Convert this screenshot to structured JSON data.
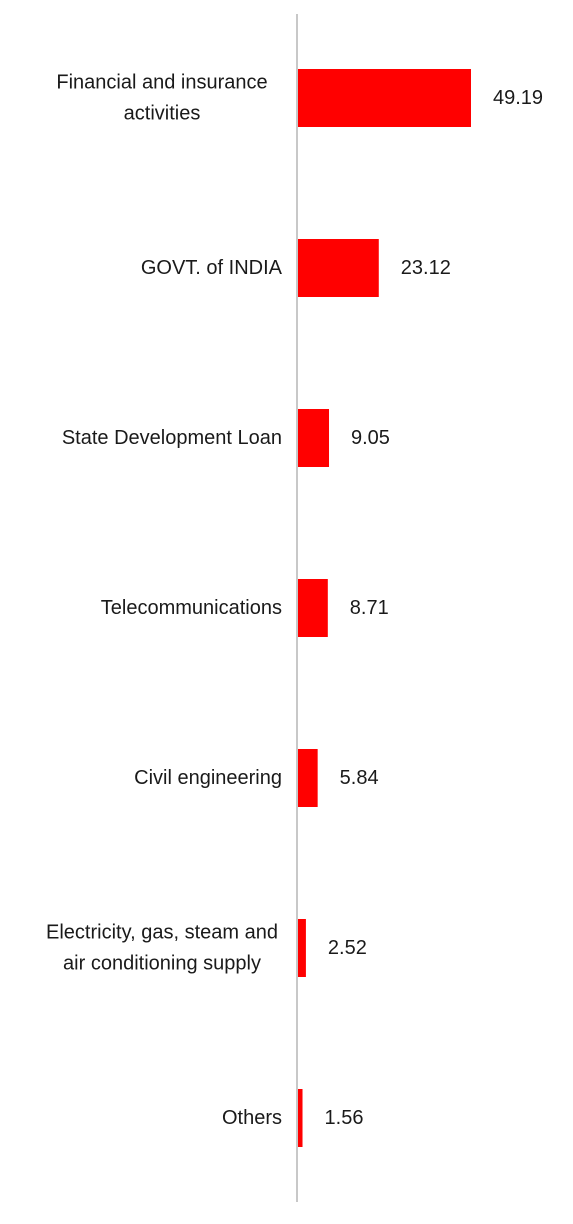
{
  "chart_data": {
    "type": "bar",
    "orientation": "horizontal",
    "title": "",
    "xlabel": "",
    "ylabel": "",
    "grid": false,
    "categories": [
      [
        "Financial and insurance",
        "activities"
      ],
      [
        "GOVT. of INDIA"
      ],
      [
        "State Development Loan"
      ],
      [
        "Telecommunications"
      ],
      [
        "Civil engineering"
      ],
      [
        "Electricity, gas, steam and",
        "air conditioning supply"
      ],
      [
        "Others"
      ]
    ],
    "values": [
      49.19,
      23.12,
      9.05,
      8.71,
      5.84,
      2.52,
      1.56
    ],
    "value_labels": [
      "49.19",
      "23.12",
      "9.05",
      "8.71",
      "5.84",
      "2.52",
      "1.56"
    ],
    "xlim": [
      0,
      49.19
    ],
    "bar_color": "#ff0000",
    "axis_color": "#c8c8c8"
  }
}
